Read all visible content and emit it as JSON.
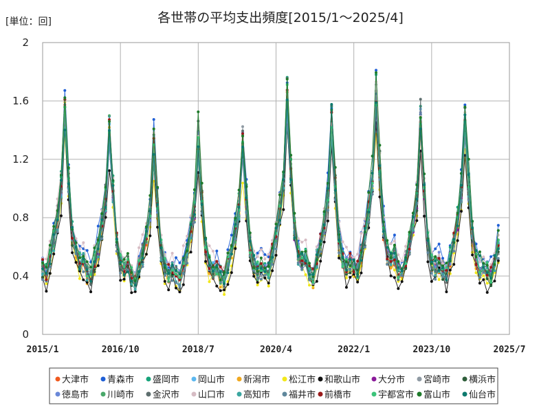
{
  "chart_data": {
    "type": "line",
    "title": "各世帯の平均支出頻度[2015/1～2025/4]",
    "unit_label": "[単位：回]",
    "ylim": [
      0,
      2
    ],
    "y_ticks": [
      "0",
      "0.4",
      "0.8",
      "1.2",
      "1.6",
      "2"
    ],
    "y_tick_values": [
      0,
      0.4,
      0.8,
      1.2,
      1.6,
      2
    ],
    "x_ticks": [
      "2015/1",
      "2016/10",
      "2018/7",
      "2020/4",
      "2022/1",
      "2023/10",
      "2025/7"
    ],
    "x_range": [
      "2015/1",
      "2025/7"
    ],
    "x_start": "2015/1",
    "x_end_data": "2025/4",
    "grid": true,
    "legend_position": "bottom",
    "seasonal_shape": [
      0.25,
      0.22,
      0.32,
      0.42,
      0.55,
      0.72,
      1.15,
      0.78,
      0.45,
      0.32,
      0.28,
      0.3
    ],
    "year_factor": [
      1.1,
      1.0,
      0.88,
      0.92,
      0.92,
      1.15,
      1.02,
      1.18,
      1.02,
      1.06,
      1.0
    ],
    "series": [
      {
        "name": "大津市",
        "color": "#f05a1e",
        "amplitude": 1.05,
        "base": 0.02,
        "jitter": 0.05
      },
      {
        "name": "青森市",
        "color": "#1f5fd6",
        "amplitude": 1.1,
        "base": 0.1,
        "jitter": 0.08
      },
      {
        "name": "盛岡市",
        "color": "#17a37a",
        "amplitude": 1.15,
        "base": 0.03,
        "jitter": 0.06
      },
      {
        "name": "岡山市",
        "color": "#5cb8f0",
        "amplitude": 1.05,
        "base": 0.05,
        "jitter": 0.06
      },
      {
        "name": "新潟市",
        "color": "#f0a820",
        "amplitude": 1.1,
        "base": 0.0,
        "jitter": 0.06
      },
      {
        "name": "松江市",
        "color": "#f2e81a",
        "amplitude": 0.95,
        "base": 0.02,
        "jitter": 0.06
      },
      {
        "name": "和歌山市",
        "color": "#111111",
        "amplitude": 0.95,
        "base": 0.0,
        "jitter": 0.07
      },
      {
        "name": "大分市",
        "color": "#8a1a9a",
        "amplitude": 0.95,
        "base": 0.08,
        "jitter": 0.05
      },
      {
        "name": "宮崎市",
        "color": "#8f9aa3",
        "amplitude": 1.05,
        "base": 0.05,
        "jitter": 0.06
      },
      {
        "name": "横浜市",
        "color": "#2e5e3a",
        "amplitude": 1.0,
        "base": 0.05,
        "jitter": 0.06
      },
      {
        "name": "徳島市",
        "color": "#6a88d8",
        "amplitude": 1.0,
        "base": 0.08,
        "jitter": 0.06
      },
      {
        "name": "川崎市",
        "color": "#4aa86a",
        "amplitude": 1.05,
        "base": 0.04,
        "jitter": 0.06
      },
      {
        "name": "金沢市",
        "color": "#5e6e6e",
        "amplitude": 1.15,
        "base": 0.02,
        "jitter": 0.06
      },
      {
        "name": "山口市",
        "color": "#d6bcc4",
        "amplitude": 1.05,
        "base": 0.12,
        "jitter": 0.06
      },
      {
        "name": "高知市",
        "color": "#3aa6a0",
        "amplitude": 1.0,
        "base": 0.05,
        "jitter": 0.06
      },
      {
        "name": "福井市",
        "color": "#5f879c",
        "amplitude": 1.0,
        "base": 0.03,
        "jitter": 0.06
      },
      {
        "name": "前橋市",
        "color": "#9a1a1a",
        "amplitude": 1.1,
        "base": 0.04,
        "jitter": 0.06
      },
      {
        "name": "宇都宮市",
        "color": "#3cc47a",
        "amplitude": 1.1,
        "base": 0.04,
        "jitter": 0.06
      },
      {
        "name": "富山市",
        "color": "#1e7a2a",
        "amplitude": 1.2,
        "base": 0.03,
        "jitter": 0.06
      },
      {
        "name": "仙台市",
        "color": "#0d7a6e",
        "amplitude": 1.05,
        "base": 0.05,
        "jitter": 0.06
      }
    ]
  }
}
